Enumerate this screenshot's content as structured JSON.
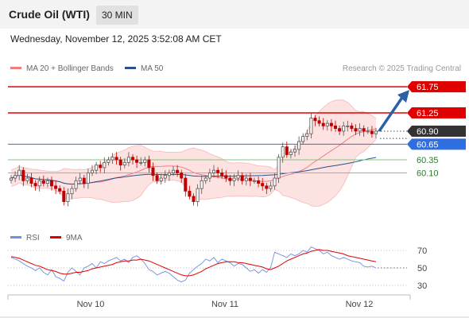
{
  "header": {
    "instrument": "Crude Oil (WTI)",
    "timeframe": "30 MIN"
  },
  "datetime": "Wednesday, November 12, 2025 3:52:08 AM CET",
  "legend": [
    {
      "label": "MA 20 + Bollinger Bands",
      "color": "#f08080"
    },
    {
      "label": "MA 50",
      "color": "#2b4f8c"
    }
  ],
  "credit": "Research © 2025 Trading Central",
  "rsi_legend": [
    {
      "label": "RSI",
      "color": "#6f8fe0"
    },
    {
      "label": "9MA",
      "color": "#e00000"
    }
  ],
  "colors": {
    "resistance": "#e00000",
    "pivot": "#2d6fe0",
    "support": "#7fc87f",
    "candle_up": "#555555",
    "candle_down": "#c00000",
    "band_fill": "#fde2e2",
    "arrow": "#2b5fa8"
  },
  "chart_data": [
    {
      "type": "candlestick",
      "title": "",
      "ylim": [
        59.3,
        61.95
      ],
      "x_ticks": [
        "Nov 10",
        "Nov 11",
        "Nov 12"
      ],
      "levels": [
        {
          "label": "61.75",
          "value": 61.75,
          "kind": "resistance"
        },
        {
          "label": "61.25",
          "value": 61.25,
          "kind": "resistance"
        },
        {
          "label": "60.90",
          "value": 60.9,
          "kind": "last"
        },
        {
          "label": "60.65",
          "value": 60.65,
          "kind": "pivot"
        },
        {
          "label": "60.35",
          "value": 60.35,
          "kind": "support"
        },
        {
          "label": "60.10",
          "value": 60.1,
          "kind": "support"
        }
      ],
      "close": [
        60.0,
        60.05,
        60.15,
        59.95,
        60.0,
        59.9,
        59.85,
        59.95,
        59.9,
        59.95,
        59.85,
        59.8,
        59.75,
        59.55,
        59.7,
        59.8,
        59.95,
        60.0,
        59.9,
        60.1,
        60.15,
        60.25,
        60.2,
        60.3,
        60.35,
        60.4,
        60.35,
        60.25,
        60.3,
        60.4,
        60.35,
        60.3,
        60.3,
        60.35,
        60.2,
        60.05,
        59.95,
        60.0,
        60.05,
        60.1,
        60.15,
        60.1,
        60.0,
        59.75,
        59.65,
        59.55,
        59.8,
        59.95,
        60.0,
        60.1,
        60.15,
        60.1,
        60.05,
        60.0,
        59.95,
        60.0,
        60.05,
        59.95,
        60.0,
        59.95,
        59.95,
        59.9,
        59.85,
        59.8,
        59.85,
        60.0,
        60.4,
        60.6,
        60.45,
        60.5,
        60.55,
        60.7,
        60.8,
        60.85,
        61.15,
        61.1,
        61.05,
        61.0,
        61.05,
        61.0,
        60.95,
        60.9,
        61.0,
        61.0,
        60.95,
        60.9,
        60.95,
        60.9,
        60.9,
        60.85,
        60.9
      ]
    },
    {
      "type": "line",
      "title": "",
      "ylim": [
        20,
        80
      ],
      "y_ticks": [
        70,
        50,
        30
      ],
      "series": [
        {
          "name": "RSI",
          "values": [
            62,
            60,
            58,
            55,
            52,
            50,
            47,
            50,
            45,
            42,
            48,
            40,
            38,
            35,
            45,
            50,
            46,
            42,
            50,
            52,
            55,
            50,
            57,
            55,
            58,
            60,
            62,
            58,
            60,
            56,
            62,
            64,
            60,
            55,
            48,
            46,
            42,
            44,
            46,
            44,
            40,
            36,
            34,
            36,
            44,
            48,
            52,
            55,
            60,
            58,
            62,
            56,
            60,
            58,
            56,
            52,
            55,
            54,
            50,
            46,
            48,
            44,
            48,
            45,
            50,
            68,
            66,
            64,
            62,
            66,
            64,
            66,
            70,
            68,
            74,
            72,
            70,
            66,
            68,
            64,
            62,
            60,
            62,
            60,
            58,
            57,
            56,
            52,
            51,
            52,
            50
          ]
        },
        {
          "name": "9MA",
          "values": [
            63,
            62,
            61,
            59,
            57,
            55,
            53,
            52,
            50,
            48,
            47,
            46,
            44,
            43,
            43,
            44,
            45,
            45,
            46,
            47,
            49,
            50,
            51,
            52,
            53,
            54,
            56,
            57,
            58,
            58,
            59,
            59,
            60,
            59,
            58,
            56,
            54,
            52,
            50,
            48,
            46,
            44,
            42,
            41,
            41,
            42,
            44,
            46,
            49,
            51,
            53,
            55,
            56,
            57,
            57,
            57,
            56,
            56,
            55,
            54,
            53,
            52,
            51,
            49,
            48,
            50,
            52,
            55,
            58,
            60,
            62,
            64,
            66,
            67,
            69,
            70,
            71,
            70,
            70,
            69,
            68,
            67,
            66,
            64,
            63,
            62,
            61,
            60,
            59,
            58,
            57
          ]
        }
      ]
    }
  ]
}
